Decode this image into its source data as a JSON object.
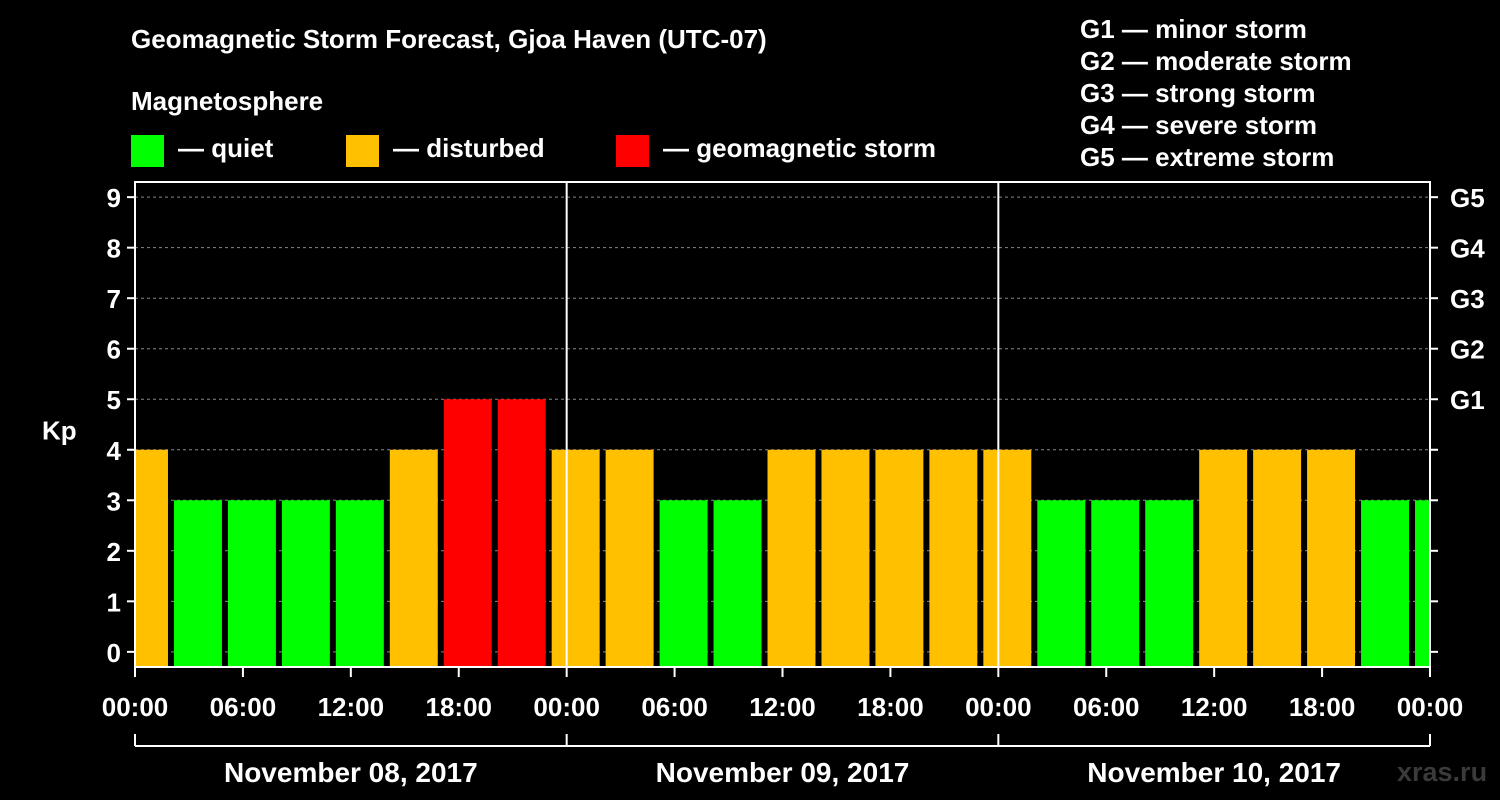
{
  "title": "Geomagnetic Storm Forecast, Gjoa Haven (UTC-07)",
  "magnetosphere": {
    "title": "Magnetosphere",
    "legend": [
      {
        "label": "— quiet",
        "color": "#00ff00"
      },
      {
        "label": "— disturbed",
        "color": "#ffc000"
      },
      {
        "label": "— geomagnetic storm",
        "color": "#ff0000"
      }
    ]
  },
  "storm_scale": [
    "G1 — minor storm",
    "G2 — moderate storm",
    "G3 — strong storm",
    "G4 — severe storm",
    "G5 — extreme storm"
  ],
  "watermark": "xras.ru",
  "chart_data": {
    "type": "bar",
    "ylabel": "Kp",
    "ylim": [
      -0.3,
      9.3
    ],
    "yticks": [
      0,
      1,
      2,
      3,
      4,
      5,
      6,
      7,
      8,
      9
    ],
    "g_ticks": [
      {
        "kp": 5,
        "label": "G1"
      },
      {
        "kp": 6,
        "label": "G2"
      },
      {
        "kp": 7,
        "label": "G3"
      },
      {
        "kp": 8,
        "label": "G4"
      },
      {
        "kp": 9,
        "label": "G5"
      }
    ],
    "x_range_hours": [
      0,
      72
    ],
    "x_ticks": [
      {
        "h": 0,
        "label": "00:00"
      },
      {
        "h": 6,
        "label": "06:00"
      },
      {
        "h": 12,
        "label": "12:00"
      },
      {
        "h": 18,
        "label": "18:00"
      },
      {
        "h": 24,
        "label": "00:00"
      },
      {
        "h": 30,
        "label": "06:00"
      },
      {
        "h": 36,
        "label": "12:00"
      },
      {
        "h": 42,
        "label": "18:00"
      },
      {
        "h": 48,
        "label": "00:00"
      },
      {
        "h": 54,
        "label": "06:00"
      },
      {
        "h": 60,
        "label": "12:00"
      },
      {
        "h": 66,
        "label": "18:00"
      },
      {
        "h": 72,
        "label": "00:00"
      }
    ],
    "day_separators_hours": [
      24,
      48
    ],
    "days": [
      {
        "label": "November 08, 2017",
        "start_h": 0,
        "end_h": 24
      },
      {
        "label": "November 09, 2017",
        "start_h": 24,
        "end_h": 48
      },
      {
        "label": "November 10, 2017",
        "start_h": 48,
        "end_h": 72
      }
    ],
    "status_colors": {
      "quiet": "#00ff00",
      "disturbed": "#ffc000",
      "storm": "#ff0000"
    },
    "bars": [
      {
        "start_h": 0,
        "end_h": 2,
        "kp": 4,
        "status": "disturbed"
      },
      {
        "start_h": 2,
        "end_h": 5,
        "kp": 3,
        "status": "quiet"
      },
      {
        "start_h": 5,
        "end_h": 8,
        "kp": 3,
        "status": "quiet"
      },
      {
        "start_h": 8,
        "end_h": 11,
        "kp": 3,
        "status": "quiet"
      },
      {
        "start_h": 11,
        "end_h": 14,
        "kp": 3,
        "status": "quiet"
      },
      {
        "start_h": 14,
        "end_h": 17,
        "kp": 4,
        "status": "disturbed"
      },
      {
        "start_h": 17,
        "end_h": 20,
        "kp": 5,
        "status": "storm"
      },
      {
        "start_h": 20,
        "end_h": 23,
        "kp": 5,
        "status": "storm"
      },
      {
        "start_h": 23,
        "end_h": 26,
        "kp": 4,
        "status": "disturbed"
      },
      {
        "start_h": 26,
        "end_h": 29,
        "kp": 4,
        "status": "disturbed"
      },
      {
        "start_h": 29,
        "end_h": 32,
        "kp": 3,
        "status": "quiet"
      },
      {
        "start_h": 32,
        "end_h": 35,
        "kp": 3,
        "status": "quiet"
      },
      {
        "start_h": 35,
        "end_h": 38,
        "kp": 4,
        "status": "disturbed"
      },
      {
        "start_h": 38,
        "end_h": 41,
        "kp": 4,
        "status": "disturbed"
      },
      {
        "start_h": 41,
        "end_h": 44,
        "kp": 4,
        "status": "disturbed"
      },
      {
        "start_h": 44,
        "end_h": 47,
        "kp": 4,
        "status": "disturbed"
      },
      {
        "start_h": 47,
        "end_h": 50,
        "kp": 4,
        "status": "disturbed"
      },
      {
        "start_h": 50,
        "end_h": 53,
        "kp": 3,
        "status": "quiet"
      },
      {
        "start_h": 53,
        "end_h": 56,
        "kp": 3,
        "status": "quiet"
      },
      {
        "start_h": 56,
        "end_h": 59,
        "kp": 3,
        "status": "quiet"
      },
      {
        "start_h": 59,
        "end_h": 62,
        "kp": 4,
        "status": "disturbed"
      },
      {
        "start_h": 62,
        "end_h": 65,
        "kp": 4,
        "status": "disturbed"
      },
      {
        "start_h": 65,
        "end_h": 68,
        "kp": 4,
        "status": "disturbed"
      },
      {
        "start_h": 68,
        "end_h": 71,
        "kp": 3,
        "status": "quiet"
      },
      {
        "start_h": 71,
        "end_h": 72,
        "kp": 3,
        "status": "quiet"
      }
    ]
  }
}
